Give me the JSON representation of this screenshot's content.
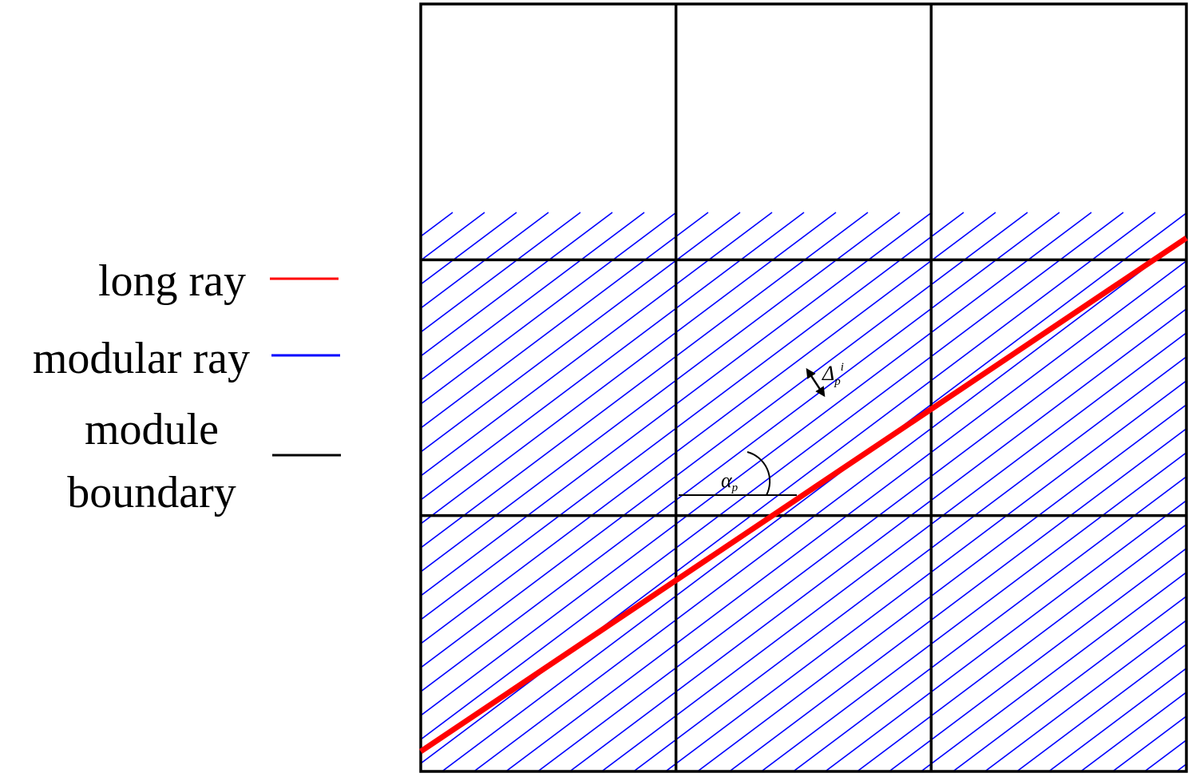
{
  "legend": {
    "items": [
      {
        "id": "long",
        "label": "long ray",
        "color": "#ff0000"
      },
      {
        "id": "modular",
        "label": "modular ray",
        "color": "#0000ff"
      },
      {
        "id": "boundary",
        "label_line1": "module",
        "label_line2": "boundary",
        "color": "#000000"
      }
    ]
  },
  "annotations": {
    "spacing_symbol": "Δ",
    "spacing_subscript": "p",
    "spacing_superscript": "i",
    "angle_symbol": "α",
    "angle_subscript": "p"
  },
  "grid": {
    "rows": 3,
    "columns": 3
  },
  "colors": {
    "long_ray": "#ff0000",
    "modular_ray": "#0000ff",
    "module_boundary": "#000000",
    "annotation": "#000000"
  }
}
